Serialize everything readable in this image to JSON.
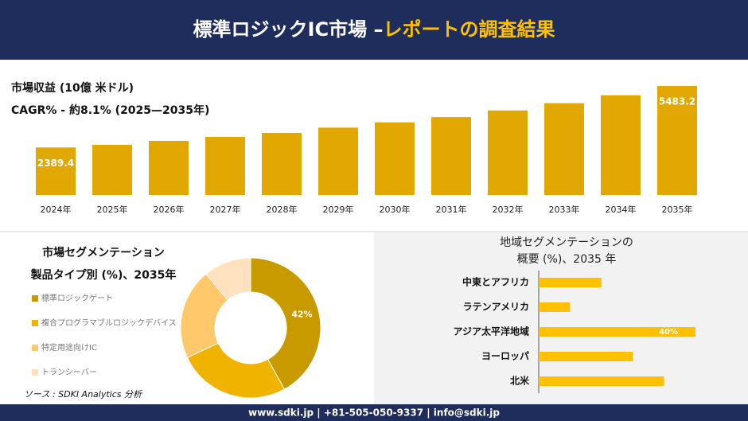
{
  "header": {
    "title": "標準ロジックIC市場 –",
    "title_highlight": "レポートの調査結果"
  },
  "chart_data": [
    {
      "type": "bar",
      "title": "市場収益 (10億 米ドル)",
      "subtitle": "CAGR% - 約8.1% (2025—2035年)",
      "categories": [
        "2024年",
        "2025年",
        "2026年",
        "2027年",
        "2028年",
        "2029年",
        "2030年",
        "2031年",
        "2032年",
        "2033年",
        "2034年",
        "2035年"
      ],
      "values": [
        2389.4,
        2522,
        2722,
        2921,
        3121,
        3387,
        3653,
        3919,
        4252,
        4617,
        5016,
        5483.2
      ],
      "value_labels": [
        "2389.4",
        null,
        null,
        null,
        null,
        null,
        null,
        null,
        null,
        null,
        null,
        "5483.2"
      ],
      "color": "#e0a800"
    },
    {
      "type": "donut",
      "title": "市場セグメンテーション",
      "subtitle": "製品タイプ別 (%)、2035年",
      "categories": [
        "標準ロジックゲート",
        "複合プログラマブルロジックデバイス",
        "特定用途向けIC",
        "トランシーバー"
      ],
      "values": [
        42,
        26,
        21,
        11
      ],
      "value_labels": [
        "42%",
        null,
        null,
        null
      ],
      "colors": [
        "#c99a00",
        "#f0b400",
        "#ffc86a",
        "#ffe2bd"
      ]
    },
    {
      "type": "barh",
      "title": "地域セグメンテーションの",
      "subtitle": "概要 (%)、2035 年",
      "categories": [
        "中東とアフリカ",
        "ラテンアメリカ",
        "アジア太平洋地域",
        "ヨーロッパ",
        "北米"
      ],
      "values": [
        16,
        8,
        40,
        24,
        32
      ],
      "value_labels": [
        null,
        null,
        "40%",
        null,
        null
      ],
      "color": "#ffc000"
    }
  ],
  "source": "ソース : SDKI Analytics 分析",
  "footer": "www.sdki.jp | +81-505-050-9337 | info@sdki.jp"
}
